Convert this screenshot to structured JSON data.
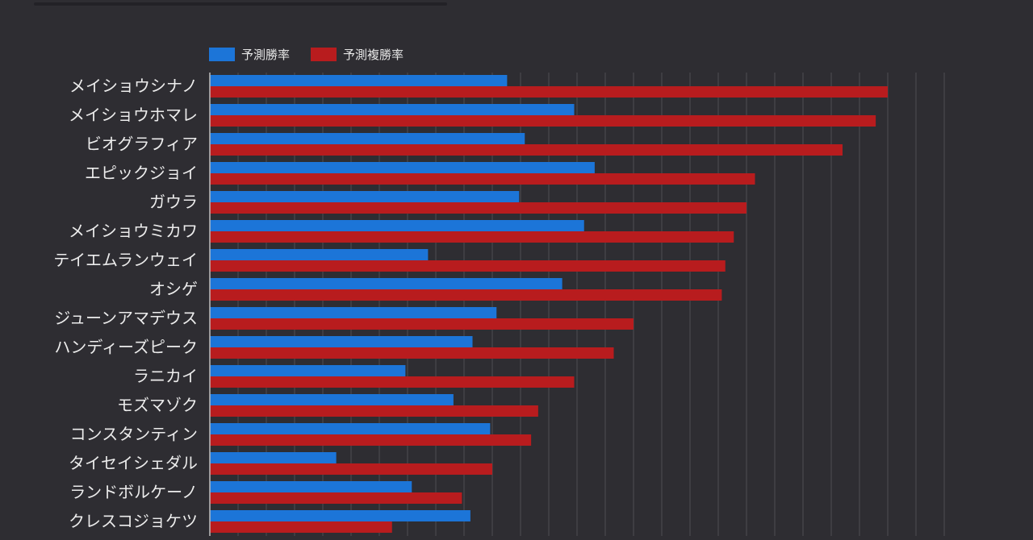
{
  "colors": {
    "background": "#2e2d32",
    "series_win": "#1c75d8",
    "series_place": "#b81c1e",
    "grid": "#4e4d53",
    "axis": "#bdbdbd",
    "text": "#ececec"
  },
  "chart_data": {
    "type": "bar",
    "orientation": "horizontal",
    "title": "",
    "xlabel": "",
    "ylabel": "",
    "xlim": [
      0,
      100
    ],
    "grid": true,
    "legend_position": "top-left",
    "categories": [
      "メイショウシナノ",
      "メイショウホマレ",
      "ビオグラフィア",
      "エピックジョイ",
      "ガウラ",
      "メイショウミカワ",
      "テイエムランウェイ",
      "オシゲ",
      "ジューンアマデウス",
      "ハンディーズピーク",
      "ラニカイ",
      "モズマゾク",
      "コンスタンティン",
      "タイセイシェダル",
      "ランドボルケーノ",
      "クレスコジョケツ"
    ],
    "series": [
      {
        "name": "予測勝率",
        "color": "#1c75d8",
        "values": [
          42.1,
          51.6,
          44.6,
          54.5,
          43.8,
          53.0,
          30.9,
          49.9,
          40.6,
          37.2,
          27.7,
          34.5,
          39.7,
          17.9,
          28.6,
          36.9
        ]
      },
      {
        "name": "予測複勝率",
        "color": "#b81c1e",
        "values": [
          96.0,
          94.3,
          89.6,
          77.2,
          76.0,
          74.2,
          73.0,
          72.5,
          60.0,
          57.2,
          51.6,
          46.5,
          45.5,
          40.0,
          35.7,
          25.8
        ]
      }
    ]
  }
}
